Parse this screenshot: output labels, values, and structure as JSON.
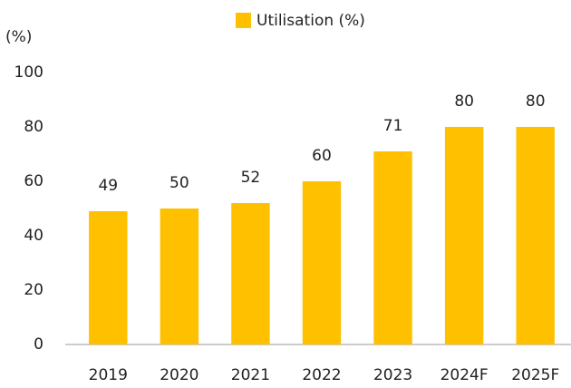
{
  "chart_data": {
    "type": "bar",
    "legend": "Utilisation (%)",
    "y_label": "(%)",
    "categories": [
      "2019",
      "2020",
      "2021",
      "2022",
      "2023",
      "2024F",
      "2025F"
    ],
    "values": [
      49,
      50,
      52,
      60,
      71,
      80,
      80
    ],
    "color": "#ffc000",
    "ylim": [
      0,
      100
    ],
    "yticks": [
      0,
      20,
      40,
      60,
      80,
      100
    ],
    "grid": false
  }
}
